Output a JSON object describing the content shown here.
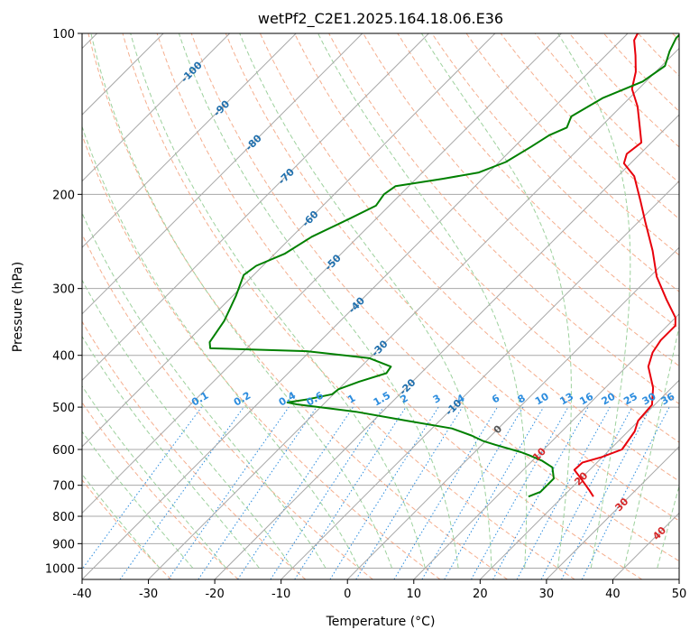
{
  "chart_data": {
    "type": "line",
    "title": "wetPf2_C2E1.2025.164.18.06.E36",
    "xlabel": "Temperature (°C)",
    "ylabel": "Pressure (hPa)",
    "xlim": [
      -40,
      50
    ],
    "ylim": [
      1050,
      100
    ],
    "y_scale": "log",
    "grid": true,
    "x_ticks": [
      -40,
      -30,
      -20,
      -10,
      0,
      10,
      20,
      30,
      40,
      50
    ],
    "y_ticks": [
      100,
      200,
      300,
      400,
      500,
      600,
      700,
      800,
      900,
      1000
    ],
    "colors": {
      "temperature": "#e8000b",
      "dewpoint": "#008000",
      "isotherm": "#a8a8a8",
      "dry_adiabat": "#f4a582",
      "moist_adiabat": "#9dd19d",
      "mixing_ratio": "#2b8cde",
      "isotherm_label": "#1f6fad",
      "mixing_label": "#2b8cde",
      "moist_label": "#d62728"
    },
    "isotherm_labels": [
      "-100",
      "-90",
      "-80",
      "-70",
      "-60",
      "-50",
      "-40",
      "-30",
      "-20",
      "-10",
      "0",
      "10",
      "20",
      "30",
      "40"
    ],
    "mixing_ratio_labels": [
      "0.1",
      "0.2",
      "0.4",
      "0.6",
      "1",
      "1.5",
      "2",
      "3",
      "4",
      "6",
      "8",
      "10",
      "13",
      "16",
      "20",
      "25",
      "30",
      "36"
    ],
    "series": [
      {
        "name": "",
        "key": "temperature",
        "points": [
          [
            24.6,
            735
          ],
          [
            23.0,
            715
          ],
          [
            20.0,
            680
          ],
          [
            17.7,
            655
          ],
          [
            17.8,
            635
          ],
          [
            19.9,
            620
          ],
          [
            21.8,
            600
          ],
          [
            21.0,
            555
          ],
          [
            19.9,
            530
          ],
          [
            19.6,
            495
          ],
          [
            17.2,
            460
          ],
          [
            13.3,
            420
          ],
          [
            11.8,
            395
          ],
          [
            11.2,
            375
          ],
          [
            11.2,
            352
          ],
          [
            10.0,
            340
          ],
          [
            6.0,
            315
          ],
          [
            1.0,
            285
          ],
          [
            -3.5,
            255
          ],
          [
            -9.0,
            225
          ],
          [
            -13.0,
            205
          ],
          [
            -17.5,
            185
          ],
          [
            -21.0,
            175
          ],
          [
            -22.0,
            168
          ],
          [
            -21.5,
            160
          ],
          [
            -24.0,
            150
          ],
          [
            -27.5,
            137
          ],
          [
            -31.0,
            127
          ],
          [
            -33.0,
            118
          ],
          [
            -35.5,
            110
          ],
          [
            -38.0,
            103
          ],
          [
            -38.5,
            100
          ]
        ]
      },
      {
        "name": "",
        "key": "dewpoint",
        "points": [
          [
            14.8,
            735
          ],
          [
            15.9,
            720
          ],
          [
            15.9,
            680
          ],
          [
            14.0,
            648
          ],
          [
            11.5,
            630
          ],
          [
            8.7,
            615
          ],
          [
            7.0,
            607
          ],
          [
            2.0,
            588
          ],
          [
            -0.5,
            578
          ],
          [
            -3.0,
            565
          ],
          [
            -7.0,
            548
          ],
          [
            -15.0,
            530
          ],
          [
            -24.0,
            510
          ],
          [
            -34.0,
            494
          ],
          [
            -35.7,
            490
          ],
          [
            -33.0,
            483
          ],
          [
            -30.2,
            473
          ],
          [
            -30.0,
            463
          ],
          [
            -28.0,
            448
          ],
          [
            -25.2,
            432
          ],
          [
            -25.5,
            420
          ],
          [
            -30.0,
            405
          ],
          [
            -40.5,
            393
          ],
          [
            -55.5,
            388
          ],
          [
            -56.5,
            378
          ],
          [
            -57.5,
            345
          ],
          [
            -59.5,
            310
          ],
          [
            -61.5,
            283
          ],
          [
            -61.0,
            272
          ],
          [
            -58.5,
            258
          ],
          [
            -57.0,
            240
          ],
          [
            -54.0,
            222
          ],
          [
            -52.0,
            210
          ],
          [
            -52.5,
            200
          ],
          [
            -52.0,
            193
          ],
          [
            -46.0,
            187
          ],
          [
            -41.5,
            182
          ],
          [
            -39.0,
            174
          ],
          [
            -37.5,
            163
          ],
          [
            -36.5,
            155
          ],
          [
            -35.0,
            150
          ],
          [
            -36.0,
            143
          ],
          [
            -34.0,
            132
          ],
          [
            -30.5,
            123
          ],
          [
            -29.5,
            115
          ],
          [
            -31.0,
            108
          ],
          [
            -32.0,
            102
          ],
          [
            -32.0,
            100
          ]
        ]
      }
    ]
  }
}
